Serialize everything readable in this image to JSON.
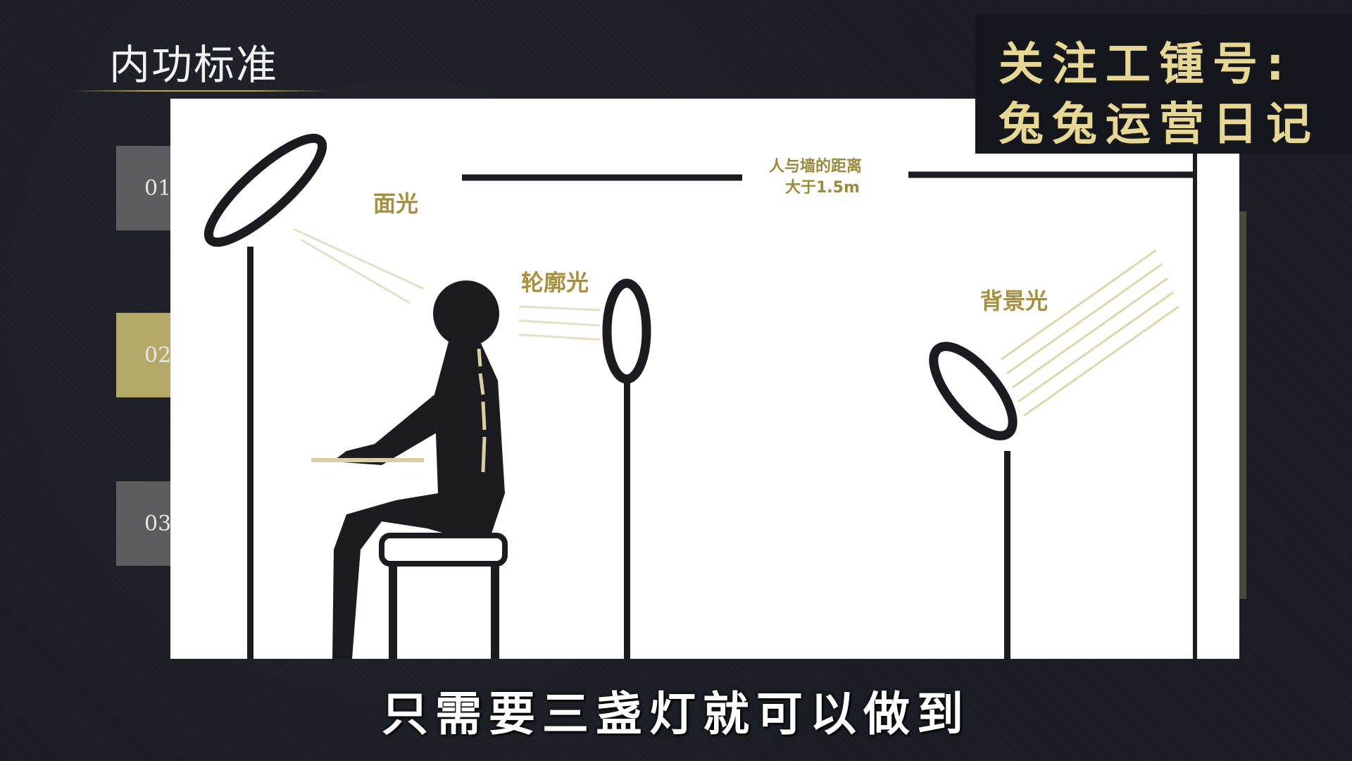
{
  "header": {
    "title": "内功标准"
  },
  "steps": [
    {
      "label": "01"
    },
    {
      "label": "02"
    },
    {
      "label": "03"
    }
  ],
  "badge": {
    "line1": "关注工锺号:",
    "line2": "兔兔运营日记"
  },
  "diagram": {
    "face_light_label": "面光",
    "rim_light_label": "轮廓光",
    "back_light_label": "背景光",
    "distance_label_line1": "人与墙的距离",
    "distance_label_line2": "大于1.5m"
  },
  "subtitle": "只需要三盏灯就可以做到",
  "colors": {
    "background": "#1a1d24",
    "gold": "#b5a768",
    "gray_tab": "#5d5d5f",
    "label_gold": "#a58f40",
    "badge_text": "#e7d795"
  }
}
